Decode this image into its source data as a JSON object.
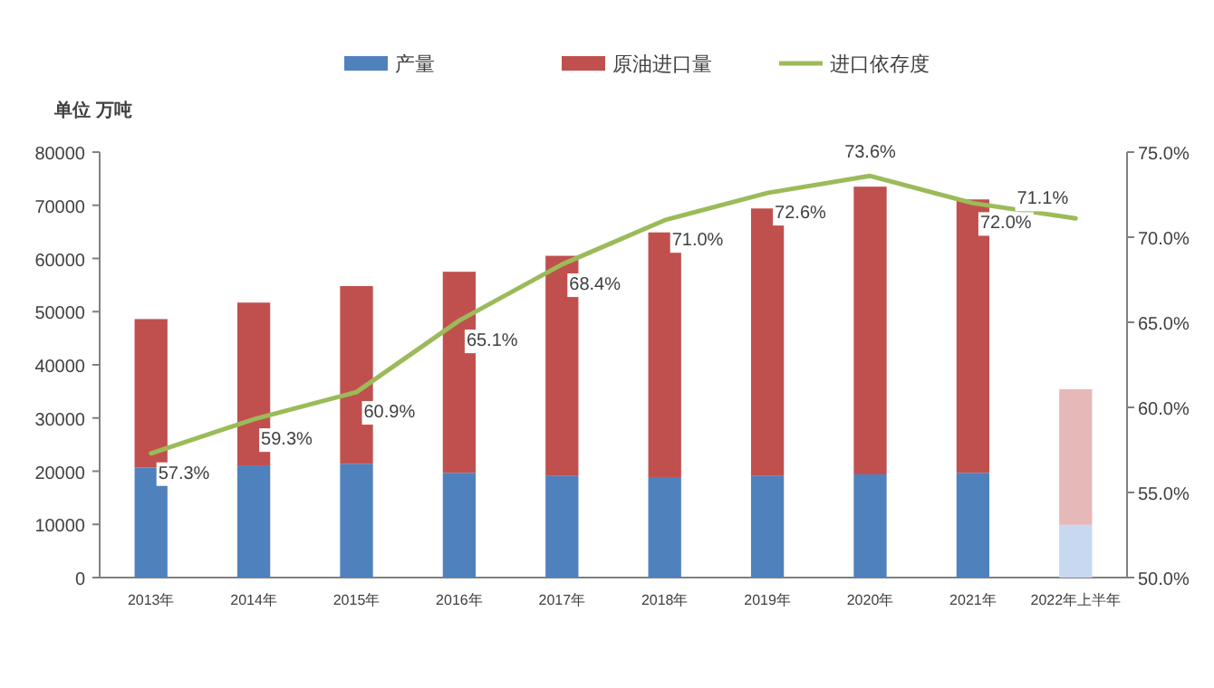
{
  "chart_data": {
    "type": "bar",
    "ylabel": "单位 万吨",
    "stacked": true,
    "legend": "top",
    "categories": [
      "2013年",
      "2014年",
      "2015年",
      "2016年",
      "2017年",
      "2018年",
      "2019年",
      "2020年",
      "2021年",
      "2022年上半年"
    ],
    "ylim": [
      0,
      80000
    ],
    "yticks": [
      0,
      10000,
      20000,
      30000,
      40000,
      50000,
      60000,
      70000,
      80000
    ],
    "y2lim": [
      50,
      75
    ],
    "y2ticks": [
      {
        "value": 50,
        "label": "50.0%"
      },
      {
        "value": 55,
        "label": "55.0%"
      },
      {
        "value": 60,
        "label": "60.0%"
      },
      {
        "value": 65,
        "label": "65.0%"
      },
      {
        "value": 70,
        "label": "70.0%"
      },
      {
        "value": 75,
        "label": "75.0%"
      }
    ],
    "series": [
      {
        "name": "产量",
        "color": "#4f81bd",
        "colors": [
          "#4f81bd",
          "#4f81bd",
          "#4f81bd",
          "#4f81bd",
          "#4f81bd",
          "#4f81bd",
          "#4f81bd",
          "#4f81bd",
          "#4f81bd",
          "#c6d9f1"
        ],
        "values": [
          20700,
          21100,
          21400,
          19700,
          19100,
          18900,
          19100,
          19400,
          19700,
          9900
        ]
      },
      {
        "name": "原油进口量",
        "color": "#c0504d",
        "colors": [
          "#c0504d",
          "#c0504d",
          "#c0504d",
          "#c0504d",
          "#c0504d",
          "#c0504d",
          "#c0504d",
          "#c0504d",
          "#c0504d",
          "#e6b9b8"
        ],
        "values": [
          27900,
          30600,
          33400,
          37800,
          41400,
          46000,
          50300,
          54100,
          51400,
          25500
        ]
      },
      {
        "name": "进口依存度",
        "type": "line",
        "axis": "y2",
        "color": "#9bbb59",
        "values": [
          57.3,
          59.3,
          60.9,
          65.1,
          68.4,
          71.0,
          72.6,
          73.6,
          72.0,
          71.1
        ],
        "value_labels": [
          "57.3%",
          "59.3%",
          "60.9%",
          "65.1%",
          "68.4%",
          "71.0%",
          "72.6%",
          "73.6%",
          "72.0%",
          "71.1%"
        ]
      }
    ]
  }
}
